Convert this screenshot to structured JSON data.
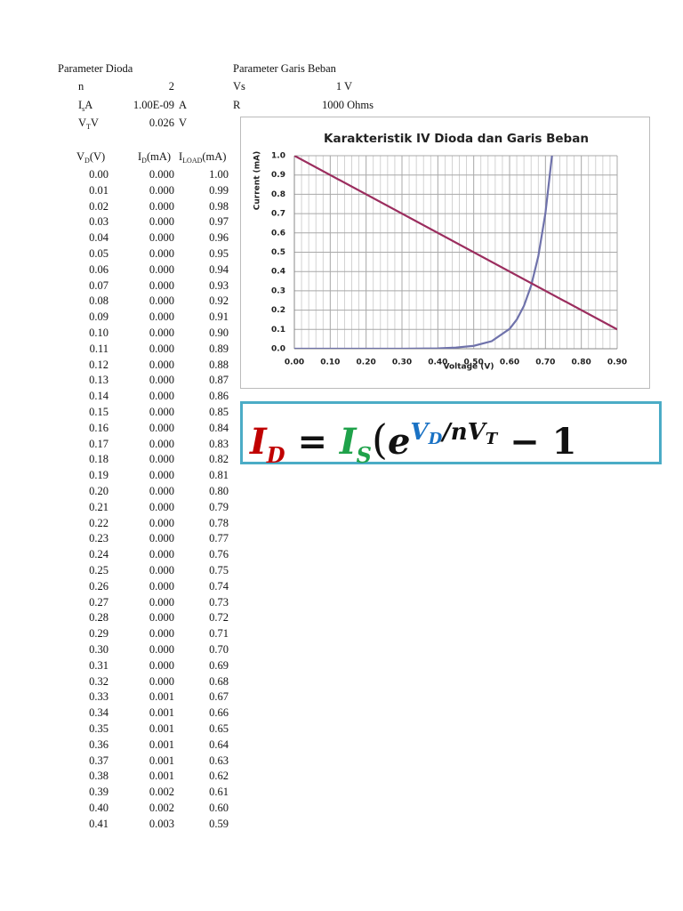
{
  "diode_params": {
    "title": "Parameter Dioda",
    "rows": [
      {
        "symbol": "n",
        "value": "2"
      },
      {
        "symbol": "I",
        "sub": "s",
        "value": "1.00E-09",
        "unit": "A"
      },
      {
        "symbol": "V",
        "sub": "T",
        "value": "0.026",
        "unit": "V"
      }
    ]
  },
  "load_params": {
    "title": "Parameter Garis Beban",
    "rows": [
      {
        "symbol": "Vs",
        "value": "1 V"
      },
      {
        "symbol": "R",
        "value": "1000 Ohms"
      }
    ]
  },
  "table": {
    "headers": [
      {
        "symbol": "V",
        "sub": "D",
        "unit": "(V)"
      },
      {
        "symbol": "I",
        "sub": "D",
        "unit": "(mA)"
      },
      {
        "symbol": "I",
        "sub": "LOAD",
        "unit": "(mA)"
      }
    ],
    "rows": [
      [
        "0.00",
        "0.000",
        "1.00"
      ],
      [
        "0.01",
        "0.000",
        "0.99"
      ],
      [
        "0.02",
        "0.000",
        "0.98"
      ],
      [
        "0.03",
        "0.000",
        "0.97"
      ],
      [
        "0.04",
        "0.000",
        "0.96"
      ],
      [
        "0.05",
        "0.000",
        "0.95"
      ],
      [
        "0.06",
        "0.000",
        "0.94"
      ],
      [
        "0.07",
        "0.000",
        "0.93"
      ],
      [
        "0.08",
        "0.000",
        "0.92"
      ],
      [
        "0.09",
        "0.000",
        "0.91"
      ],
      [
        "0.10",
        "0.000",
        "0.90"
      ],
      [
        "0.11",
        "0.000",
        "0.89"
      ],
      [
        "0.12",
        "0.000",
        "0.88"
      ],
      [
        "0.13",
        "0.000",
        "0.87"
      ],
      [
        "0.14",
        "0.000",
        "0.86"
      ],
      [
        "0.15",
        "0.000",
        "0.85"
      ],
      [
        "0.16",
        "0.000",
        "0.84"
      ],
      [
        "0.17",
        "0.000",
        "0.83"
      ],
      [
        "0.18",
        "0.000",
        "0.82"
      ],
      [
        "0.19",
        "0.000",
        "0.81"
      ],
      [
        "0.20",
        "0.000",
        "0.80"
      ],
      [
        "0.21",
        "0.000",
        "0.79"
      ],
      [
        "0.22",
        "0.000",
        "0.78"
      ],
      [
        "0.23",
        "0.000",
        "0.77"
      ],
      [
        "0.24",
        "0.000",
        "0.76"
      ],
      [
        "0.25",
        "0.000",
        "0.75"
      ],
      [
        "0.26",
        "0.000",
        "0.74"
      ],
      [
        "0.27",
        "0.000",
        "0.73"
      ],
      [
        "0.28",
        "0.000",
        "0.72"
      ],
      [
        "0.29",
        "0.000",
        "0.71"
      ],
      [
        "0.30",
        "0.000",
        "0.70"
      ],
      [
        "0.31",
        "0.000",
        "0.69"
      ],
      [
        "0.32",
        "0.000",
        "0.68"
      ],
      [
        "0.33",
        "0.001",
        "0.67"
      ],
      [
        "0.34",
        "0.001",
        "0.66"
      ],
      [
        "0.35",
        "0.001",
        "0.65"
      ],
      [
        "0.36",
        "0.001",
        "0.64"
      ],
      [
        "0.37",
        "0.001",
        "0.63"
      ],
      [
        "0.38",
        "0.001",
        "0.62"
      ],
      [
        "0.39",
        "0.002",
        "0.61"
      ],
      [
        "0.40",
        "0.002",
        "0.60"
      ],
      [
        "0.41",
        "0.003",
        "0.59"
      ]
    ]
  },
  "chart_data": {
    "type": "line",
    "title": "Karakteristik IV Dioda dan Garis Beban",
    "x_label": "Voltage (V)",
    "y_label": "Current (mA)",
    "series": [
      {
        "color": "#6f72ab",
        "x": [
          0,
          0.1,
          0.2,
          0.3,
          0.4,
          0.45,
          0.5,
          0.55,
          0.6,
          0.62,
          0.64,
          0.66,
          0.68,
          0.7,
          0.72
        ],
        "values": [
          0,
          0,
          0,
          0.0003,
          0.002,
          0.006,
          0.015,
          0.039,
          0.103,
          0.151,
          0.222,
          0.326,
          0.478,
          0.703,
          1.03
        ]
      },
      {
        "color": "#9b2d5e",
        "x": [
          0,
          0.9
        ],
        "values": [
          1,
          0.1
        ]
      }
    ],
    "xlim": [
      0,
      0.9
    ],
    "xticks": [
      {
        "value": 0,
        "label": "0.00"
      },
      {
        "value": 0.1,
        "label": "0.10"
      },
      {
        "value": 0.2,
        "label": "0.20"
      },
      {
        "value": 0.3,
        "label": "0.30"
      },
      {
        "value": 0.4,
        "label": "0.40"
      },
      {
        "value": 0.5,
        "label": "0.50"
      },
      {
        "value": 0.6,
        "label": "0.60"
      },
      {
        "value": 0.7,
        "label": "0.70"
      },
      {
        "value": 0.8,
        "label": "0.80"
      },
      {
        "value": 0.9,
        "label": "0.90"
      }
    ],
    "ylim": [
      0,
      1
    ],
    "yticks": [
      {
        "value": 0,
        "label": "0.0"
      },
      0.1,
      0.2,
      0.3,
      0.4,
      0.5,
      0.6,
      0.7,
      0.8,
      0.9,
      {
        "value": 1,
        "label": "1.0"
      }
    ],
    "grid": true
  },
  "equation": {
    "lhs": "I",
    "lhs_sub": "D",
    "equals": "=",
    "is": "I",
    "is_sub": "S",
    "open": "(",
    "base": "e",
    "exp_v": "V",
    "exp_v_sub": "D",
    "slash": "/",
    "n": "n",
    "exp_vt": "V",
    "exp_vt_sub": "T",
    "minus": "−",
    "one": "1"
  }
}
